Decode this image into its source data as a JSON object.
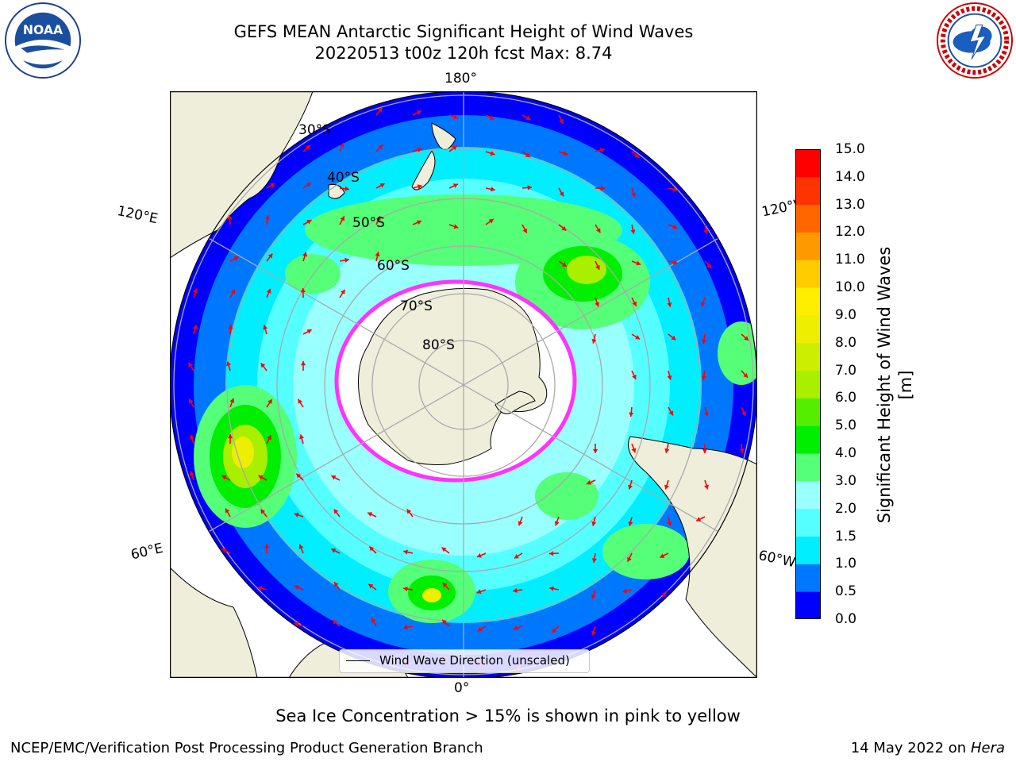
{
  "title_line1": "GEFS MEAN Antarctic Significant Height of Wind Waves",
  "title_line2": "20220513 t00z 120h fcst   Max: 8.74",
  "logos": {
    "left": "noaa-logo",
    "left_text": "NOAA",
    "right": "nws-logo"
  },
  "map": {
    "lon_labels": {
      "top": "180°",
      "bottom": "0°",
      "left_upper": "120°E",
      "left_lower": "60°E",
      "right_upper": "120°W",
      "right_lower": "60°W"
    },
    "lat_labels": [
      "30°S",
      "40°S",
      "50°S",
      "60°S",
      "70°S",
      "80°S"
    ],
    "land_color": "#eeeedb",
    "arrow_color": "#ff0000",
    "ice_edge_color": "#ff33ff"
  },
  "legend": {
    "label": "Wind Wave Direction (unscaled)"
  },
  "colorbar": {
    "label": "Significant Height of Wind Waves [m]",
    "ticks": [
      "0.0",
      "0.5",
      "1.0",
      "1.5",
      "2.0",
      "3.0",
      "4.0",
      "5.0",
      "6.0",
      "7.0",
      "8.0",
      "9.0",
      "10.0",
      "11.0",
      "12.0",
      "13.0",
      "14.0",
      "15.0"
    ],
    "colors": [
      "#0000ff",
      "#0077ff",
      "#00eeff",
      "#55ffff",
      "#99ffff",
      "#55ff77",
      "#00ee00",
      "#55ee00",
      "#aaee00",
      "#ccee00",
      "#eeee00",
      "#ffee00",
      "#ffcc00",
      "#ff9900",
      "#ff6600",
      "#ff3300",
      "#ff0000"
    ]
  },
  "note": "Sea Ice Concentration > 15% is shown in pink to yellow",
  "footer_left": "NCEP/EMC/Verification Post Processing Product Generation Branch",
  "footer_right_date": "14 May 2022 on",
  "footer_right_machine": "Hera"
}
